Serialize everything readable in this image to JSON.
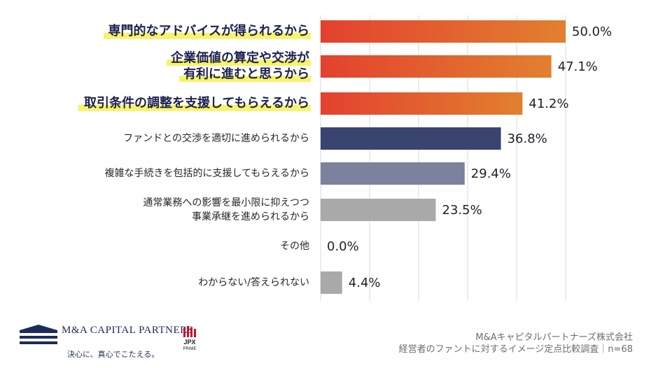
{
  "chart_data": {
    "type": "bar",
    "orientation": "horizontal",
    "categories": [
      [
        "専門的なアドバイスが得られるから"
      ],
      [
        "企業価値の算定や交渉が",
        "有利に進むと思うから"
      ],
      [
        "取引条件の調整を支援してもらえるから"
      ],
      [
        "ファンドとの交渉を適切に進められるから"
      ],
      [
        "複雑な手続きを包括的に支援してもらえるから"
      ],
      [
        "通常業務への影響を最小限に抑えつつ",
        "事業承継を進められるから"
      ],
      [
        "その他"
      ],
      [
        "わからない/答えられない"
      ]
    ],
    "values": [
      50.0,
      47.1,
      41.2,
      36.8,
      29.4,
      23.5,
      0.0,
      4.4
    ],
    "value_labels": [
      "50.0%",
      "47.1%",
      "41.2%",
      "36.8%",
      "29.4%",
      "23.5%",
      "0.0%",
      "4.4%"
    ],
    "highlighted": [
      true,
      true,
      true,
      false,
      false,
      false,
      false,
      false
    ],
    "bar_styles": [
      "orange",
      "orange",
      "orange",
      "navy",
      "slate",
      "gray",
      "gray",
      "gray"
    ],
    "xlim": [
      0,
      50
    ],
    "grid": true
  },
  "colors": {
    "orange_start": "#e3412f",
    "orange_end": "#e2802f",
    "navy": "#3a4470",
    "slate": "#7c819d",
    "gray": "#a9a9a9",
    "highlight": "#f7f36a",
    "grid": "#d8d8d8",
    "brand": "#1d2b5c",
    "jpx_red": "#c8102e"
  },
  "footer": {
    "brand_name": "M&A CAPITAL PARTNERS",
    "tagline": "決心に、真心でこたえる。",
    "badge_label": "JPX",
    "badge_sublabel": "PRIME",
    "source_company": "M&Aキャピタルパートナーズ株式会社",
    "source_note": "経営者のファントに対するイメージ定点比較調査｜n=68"
  },
  "icons": [
    "mcp-logo-icon",
    "jpx-prime-icon"
  ]
}
